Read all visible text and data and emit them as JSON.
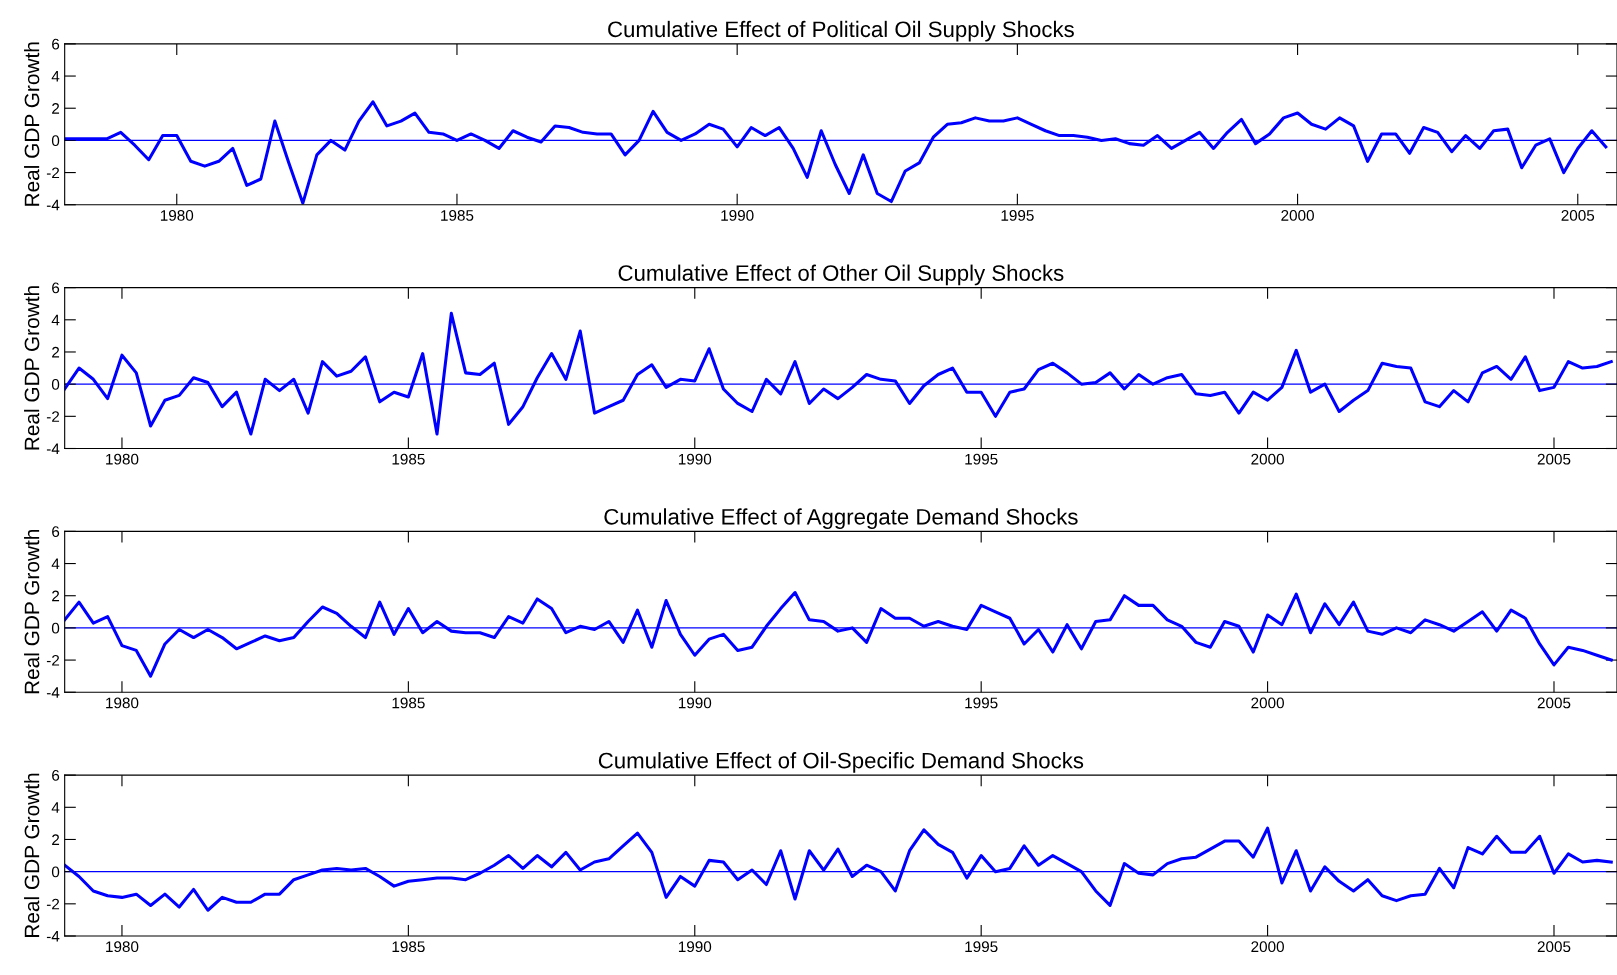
{
  "chart_data": [
    {
      "type": "line",
      "title": "Cumulative Effect of Political Oil Supply Shocks",
      "ylabel": "Real GDP Growth",
      "x": [
        1978,
        1978.25,
        1978.5,
        1978.75,
        1979,
        1979.25,
        1979.5,
        1979.75,
        1980,
        1980.25,
        1980.5,
        1980.75,
        1981,
        1981.25,
        1981.5,
        1981.75,
        1982,
        1982.25,
        1982.5,
        1982.75,
        1983,
        1983.25,
        1983.5,
        1983.75,
        1984,
        1984.25,
        1984.5,
        1984.75,
        1985,
        1985.25,
        1985.5,
        1985.75,
        1986,
        1986.25,
        1986.5,
        1986.75,
        1987,
        1987.25,
        1987.5,
        1987.75,
        1988,
        1988.25,
        1988.5,
        1988.75,
        1989,
        1989.25,
        1989.5,
        1989.75,
        1990,
        1990.25,
        1990.5,
        1990.75,
        1991,
        1991.25,
        1991.5,
        1991.75,
        1992,
        1992.25,
        1992.5,
        1992.75,
        1993,
        1993.25,
        1993.5,
        1993.75,
        1994,
        1994.25,
        1994.5,
        1994.75,
        1995,
        1995.25,
        1995.5,
        1995.75,
        1996,
        1996.25,
        1996.5,
        1996.75,
        1997,
        1997.25,
        1997.5,
        1997.75,
        1998,
        1998.25,
        1998.5,
        1998.75,
        1999,
        1999.25,
        1999.5,
        1999.75,
        2000,
        2000.25,
        2000.5,
        2000.75,
        2001,
        2001.25,
        2001.5,
        2001.75,
        2002,
        2002.25,
        2002.5,
        2002.75,
        2003,
        2003.25,
        2003.5,
        2003.75,
        2004,
        2004.25,
        2004.5,
        2004.75,
        2005,
        2005.25,
        2005.5
      ],
      "series": [
        {
          "color": "#0000ff",
          "values": [
            0.1,
            0.1,
            0.1,
            0.1,
            0.5,
            -0.3,
            -1.2,
            0.3,
            0.3,
            -1.3,
            -1.6,
            -1.3,
            -0.5,
            -2.8,
            -2.4,
            1.2,
            -1.4,
            -3.9,
            -0.9,
            0.0,
            -0.6,
            1.2,
            2.4,
            0.9,
            1.2,
            1.7,
            0.5,
            0.4,
            0.0,
            0.4,
            0.0,
            -0.5,
            0.6,
            0.2,
            -0.1,
            0.9,
            0.8,
            0.5,
            0.4,
            0.4,
            -0.9,
            0.0,
            1.8,
            0.5,
            0.0,
            0.4,
            1.0,
            0.7,
            -0.4,
            0.8,
            0.3,
            0.8,
            -0.5,
            -2.3,
            0.6,
            -1.5,
            -3.3,
            -0.9,
            -3.3,
            -3.8,
            -1.9,
            -1.4,
            0.2,
            1.0,
            1.1,
            1.4,
            1.2,
            1.2,
            1.4,
            1.0,
            0.6,
            0.3,
            0.3,
            0.2,
            0.0,
            0.1,
            -0.2,
            -0.3,
            0.3,
            -0.5,
            0.0,
            0.5,
            -0.5,
            0.5,
            1.3,
            -0.2,
            0.4,
            1.4,
            1.7,
            1.0,
            0.7,
            1.4,
            0.9,
            -1.3,
            0.4,
            0.4,
            -0.8,
            0.8,
            0.5,
            -0.7,
            0.3,
            -0.5,
            0.6,
            0.7,
            -1.7,
            -0.3,
            0.1,
            -2.0,
            -0.5,
            0.6,
            -0.4
          ]
        }
      ],
      "xlim": [
        1978,
        2005.7
      ],
      "xticks": [
        1980,
        1985,
        1990,
        1995,
        2000,
        2005
      ],
      "ylim": [
        -4,
        6
      ],
      "yticks": [
        -4,
        -2,
        0,
        2,
        4,
        6
      ],
      "ref_lines": [
        {
          "axis": "y",
          "value": 0,
          "color": "#0000ff"
        }
      ],
      "grid": false,
      "legend": false,
      "marker": "none",
      "line_style": "solid"
    },
    {
      "type": "line",
      "title": "Cumulative Effect of Other Oil Supply Shocks",
      "ylabel": "Real GDP Growth",
      "x": [
        1979,
        1979.25,
        1979.5,
        1979.75,
        1980,
        1980.25,
        1980.5,
        1980.75,
        1981,
        1981.25,
        1981.5,
        1981.75,
        1982,
        1982.25,
        1982.5,
        1982.75,
        1983,
        1983.25,
        1983.5,
        1983.75,
        1984,
        1984.25,
        1984.5,
        1984.75,
        1985,
        1985.25,
        1985.5,
        1985.75,
        1986,
        1986.25,
        1986.5,
        1986.75,
        1987,
        1987.25,
        1987.5,
        1987.75,
        1988,
        1988.25,
        1988.5,
        1988.75,
        1989,
        1989.25,
        1989.5,
        1989.75,
        1990,
        1990.25,
        1990.5,
        1990.75,
        1991,
        1991.25,
        1991.5,
        1991.75,
        1992,
        1992.25,
        1992.5,
        1992.75,
        1993,
        1993.25,
        1993.5,
        1993.75,
        1994,
        1994.25,
        1994.5,
        1994.75,
        1995,
        1995.25,
        1995.5,
        1995.75,
        1996,
        1996.25,
        1996.5,
        1996.75,
        1997,
        1997.25,
        1997.5,
        1997.75,
        1998,
        1998.25,
        1998.5,
        1998.75,
        1999,
        1999.25,
        1999.5,
        1999.75,
        2000,
        2000.25,
        2000.5,
        2000.75,
        2001,
        2001.25,
        2001.5,
        2001.75,
        2002,
        2002.25,
        2002.5,
        2002.75,
        2003,
        2003.25,
        2003.5,
        2003.75,
        2004,
        2004.25,
        2004.5,
        2004.75,
        2005,
        2005.25,
        2005.5,
        2005.75,
        2006
      ],
      "series": [
        {
          "color": "#0000ff",
          "values": [
            -0.3,
            1.0,
            0.3,
            -0.9,
            1.8,
            0.7,
            -2.6,
            -1.0,
            -0.7,
            0.4,
            0.1,
            -1.4,
            -0.5,
            -3.1,
            0.3,
            -0.4,
            0.3,
            -1.8,
            1.4,
            0.5,
            0.8,
            1.7,
            -1.1,
            -0.5,
            -0.8,
            1.9,
            -3.1,
            4.4,
            0.7,
            0.6,
            1.3,
            -2.5,
            -1.4,
            0.4,
            1.9,
            0.3,
            3.3,
            -1.8,
            -1.4,
            -1.0,
            0.6,
            1.2,
            -0.2,
            0.3,
            0.2,
            2.2,
            -0.3,
            -1.2,
            -1.7,
            0.3,
            -0.6,
            1.4,
            -1.2,
            -0.3,
            -0.9,
            -0.2,
            0.6,
            0.3,
            0.2,
            -1.2,
            -0.1,
            0.6,
            1.0,
            -0.5,
            -0.5,
            -2.0,
            -0.5,
            -0.3,
            0.9,
            1.3,
            0.7,
            0.0,
            0.1,
            0.7,
            -0.3,
            0.6,
            0.0,
            0.4,
            0.6,
            -0.6,
            -0.7,
            -0.5,
            -1.8,
            -0.5,
            -1.0,
            -0.2,
            2.1,
            -0.5,
            0.0,
            -1.7,
            -1.0,
            -0.4,
            1.3,
            1.1,
            1.0,
            -1.1,
            -1.4,
            -0.4,
            -1.1,
            0.7,
            1.1,
            0.3,
            1.7,
            -0.4,
            -0.2,
            1.4,
            1.0,
            1.1,
            1.4
          ]
        }
      ],
      "xlim": [
        1979,
        2006.1
      ],
      "xticks": [
        1980,
        1985,
        1990,
        1995,
        2000,
        2005
      ],
      "ylim": [
        -4,
        6
      ],
      "yticks": [
        -4,
        -2,
        0,
        2,
        4,
        6
      ],
      "ref_lines": [
        {
          "axis": "y",
          "value": 0,
          "color": "#0000ff"
        }
      ],
      "grid": false,
      "legend": false,
      "marker": "none",
      "line_style": "solid"
    },
    {
      "type": "line",
      "title": "Cumulative Effect of Aggregate Demand Shocks",
      "ylabel": "Real GDP Growth",
      "x": [
        1979,
        1979.25,
        1979.5,
        1979.75,
        1980,
        1980.25,
        1980.5,
        1980.75,
        1981,
        1981.25,
        1981.5,
        1981.75,
        1982,
        1982.25,
        1982.5,
        1982.75,
        1983,
        1983.25,
        1983.5,
        1983.75,
        1984,
        1984.25,
        1984.5,
        1984.75,
        1985,
        1985.25,
        1985.5,
        1985.75,
        1986,
        1986.25,
        1986.5,
        1986.75,
        1987,
        1987.25,
        1987.5,
        1987.75,
        1988,
        1988.25,
        1988.5,
        1988.75,
        1989,
        1989.25,
        1989.5,
        1989.75,
        1990,
        1990.25,
        1990.5,
        1990.75,
        1991,
        1991.25,
        1991.5,
        1991.75,
        1992,
        1992.25,
        1992.5,
        1992.75,
        1993,
        1993.25,
        1993.5,
        1993.75,
        1994,
        1994.25,
        1994.5,
        1994.75,
        1995,
        1995.25,
        1995.5,
        1995.75,
        1996,
        1996.25,
        1996.5,
        1996.75,
        1997,
        1997.25,
        1997.5,
        1997.75,
        1998,
        1998.25,
        1998.5,
        1998.75,
        1999,
        1999.25,
        1999.5,
        1999.75,
        2000,
        2000.25,
        2000.5,
        2000.75,
        2001,
        2001.25,
        2001.5,
        2001.75,
        2002,
        2002.25,
        2002.5,
        2002.75,
        2003,
        2003.25,
        2003.5,
        2003.75,
        2004,
        2004.25,
        2004.5,
        2004.75,
        2005,
        2005.25,
        2005.5,
        2005.75,
        2006
      ],
      "series": [
        {
          "color": "#0000ff",
          "values": [
            0.5,
            1.6,
            0.3,
            0.7,
            -1.1,
            -1.4,
            -3.0,
            -1.0,
            -0.1,
            -0.6,
            -0.1,
            -0.6,
            -1.3,
            -0.9,
            -0.5,
            -0.8,
            -0.6,
            0.4,
            1.3,
            0.9,
            0.1,
            -0.6,
            1.6,
            -0.4,
            1.2,
            -0.3,
            0.4,
            -0.2,
            -0.3,
            -0.3,
            -0.6,
            0.7,
            0.3,
            1.8,
            1.2,
            -0.3,
            0.1,
            -0.1,
            0.4,
            -0.9,
            1.1,
            -1.2,
            1.7,
            -0.4,
            -1.7,
            -0.7,
            -0.4,
            -1.4,
            -1.2,
            0.1,
            1.2,
            2.2,
            0.5,
            0.4,
            -0.2,
            0.0,
            -0.9,
            1.2,
            0.6,
            0.6,
            0.1,
            0.4,
            0.1,
            -0.1,
            1.4,
            1.0,
            0.6,
            -1.0,
            -0.1,
            -1.5,
            0.2,
            -1.3,
            0.4,
            0.5,
            2.0,
            1.4,
            1.4,
            0.5,
            0.1,
            -0.9,
            -1.2,
            0.4,
            0.1,
            -1.5,
            0.8,
            0.2,
            2.1,
            -0.3,
            1.5,
            0.2,
            1.6,
            -0.2,
            -0.4,
            0.0,
            -0.3,
            0.5,
            0.2,
            -0.2,
            0.4,
            1.0,
            -0.2,
            1.1,
            0.6,
            -1.0,
            -2.3,
            -1.2,
            -1.4,
            -1.7,
            -2.0
          ]
        }
      ],
      "xlim": [
        1979,
        2006.1
      ],
      "xticks": [
        1980,
        1985,
        1990,
        1995,
        2000,
        2005
      ],
      "ylim": [
        -4,
        6
      ],
      "yticks": [
        -4,
        -2,
        0,
        2,
        4,
        6
      ],
      "ref_lines": [
        {
          "axis": "y",
          "value": 0,
          "color": "#0000ff"
        }
      ],
      "grid": false,
      "legend": false,
      "marker": "none",
      "line_style": "solid"
    },
    {
      "type": "line",
      "title": "Cumulative Effect of Oil-Specific Demand Shocks",
      "ylabel": "Real GDP Growth",
      "x": [
        1979,
        1979.25,
        1979.5,
        1979.75,
        1980,
        1980.25,
        1980.5,
        1980.75,
        1981,
        1981.25,
        1981.5,
        1981.75,
        1982,
        1982.25,
        1982.5,
        1982.75,
        1983,
        1983.25,
        1983.5,
        1983.75,
        1984,
        1984.25,
        1984.5,
        1984.75,
        1985,
        1985.25,
        1985.5,
        1985.75,
        1986,
        1986.25,
        1986.5,
        1986.75,
        1987,
        1987.25,
        1987.5,
        1987.75,
        1988,
        1988.25,
        1988.5,
        1988.75,
        1989,
        1989.25,
        1989.5,
        1989.75,
        1990,
        1990.25,
        1990.5,
        1990.75,
        1991,
        1991.25,
        1991.5,
        1991.75,
        1992,
        1992.25,
        1992.5,
        1992.75,
        1993,
        1993.25,
        1993.5,
        1993.75,
        1994,
        1994.25,
        1994.5,
        1994.75,
        1995,
        1995.25,
        1995.5,
        1995.75,
        1996,
        1996.25,
        1996.5,
        1996.75,
        1997,
        1997.25,
        1997.5,
        1997.75,
        1998,
        1998.25,
        1998.5,
        1998.75,
        1999,
        1999.25,
        1999.5,
        1999.75,
        2000,
        2000.25,
        2000.5,
        2000.75,
        2001,
        2001.25,
        2001.5,
        2001.75,
        2002,
        2002.25,
        2002.5,
        2002.75,
        2003,
        2003.25,
        2003.5,
        2003.75,
        2004,
        2004.25,
        2004.5,
        2004.75,
        2005,
        2005.25,
        2005.5,
        2005.75,
        2006
      ],
      "series": [
        {
          "color": "#0000ff",
          "values": [
            0.4,
            -0.3,
            -1.2,
            -1.5,
            -1.6,
            -1.4,
            -2.1,
            -1.4,
            -2.2,
            -1.1,
            -2.4,
            -1.6,
            -1.9,
            -1.9,
            -1.4,
            -1.4,
            -0.5,
            -0.2,
            0.1,
            0.2,
            0.1,
            0.2,
            -0.3,
            -0.9,
            -0.6,
            -0.5,
            -0.4,
            -0.4,
            -0.5,
            -0.1,
            0.4,
            1.0,
            0.2,
            1.0,
            0.3,
            1.2,
            0.1,
            0.6,
            0.8,
            1.6,
            2.4,
            1.2,
            -1.6,
            -0.3,
            -0.9,
            0.7,
            0.6,
            -0.5,
            0.1,
            -0.8,
            1.3,
            -1.7,
            1.3,
            0.1,
            1.4,
            -0.3,
            0.4,
            0.0,
            -1.2,
            1.3,
            2.6,
            1.7,
            1.2,
            -0.4,
            1.0,
            0.0,
            0.2,
            1.6,
            0.4,
            1.0,
            0.5,
            0.0,
            -1.2,
            -2.1,
            0.5,
            -0.1,
            -0.2,
            0.5,
            0.8,
            0.9,
            1.4,
            1.9,
            1.9,
            0.9,
            2.7,
            -0.7,
            1.3,
            -1.2,
            0.3,
            -0.6,
            -1.2,
            -0.5,
            -1.5,
            -1.8,
            -1.5,
            -1.4,
            0.2,
            -1.0,
            1.5,
            1.1,
            2.2,
            1.2,
            1.2,
            2.2,
            -0.1,
            1.1,
            0.6,
            0.7,
            0.6
          ]
        }
      ],
      "xlim": [
        1979,
        2006.1
      ],
      "xticks": [
        1980,
        1985,
        1990,
        1995,
        2000,
        2005
      ],
      "ylim": [
        -4,
        6
      ],
      "yticks": [
        -4,
        -2,
        0,
        2,
        4,
        6
      ],
      "ref_lines": [
        {
          "axis": "y",
          "value": 0,
          "color": "#0000ff"
        }
      ],
      "grid": false,
      "legend": false,
      "marker": "none",
      "line_style": "solid"
    }
  ]
}
